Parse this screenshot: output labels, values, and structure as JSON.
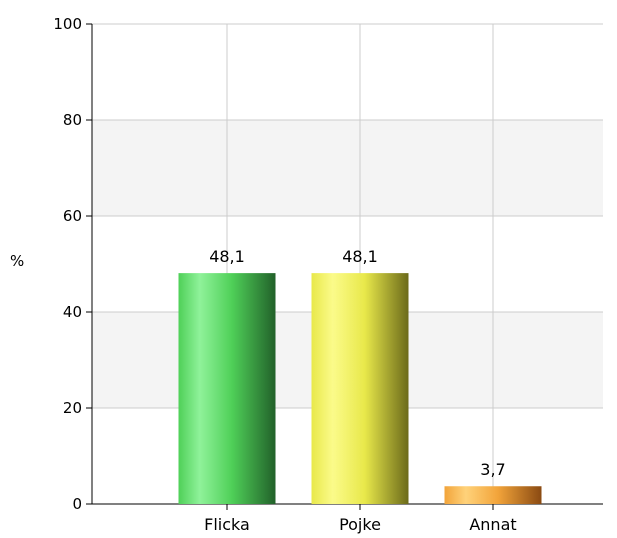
{
  "chart_data": {
    "type": "bar",
    "title": "",
    "xlabel": "",
    "ylabel": "%",
    "ylim": [
      0,
      100
    ],
    "yticks": [
      0,
      20,
      40,
      60,
      80,
      100
    ],
    "grid": true,
    "categories": [
      "Flicka",
      "Pojke",
      "Annat"
    ],
    "values": [
      48.1,
      48.1,
      3.7
    ],
    "value_labels": [
      "48,1",
      "48,1",
      "3,7"
    ],
    "colors": [
      {
        "light": "#8ff29a",
        "mid": "#4fd058",
        "dark": "#22612a"
      },
      {
        "light": "#fbfb8a",
        "mid": "#e8e84a",
        "dark": "#6b6a1a"
      },
      {
        "light": "#ffd27a",
        "mid": "#f2a43a",
        "dark": "#8a4a12"
      }
    ],
    "band_color": "#f4f4f4",
    "grid_color": "#cccccc"
  }
}
